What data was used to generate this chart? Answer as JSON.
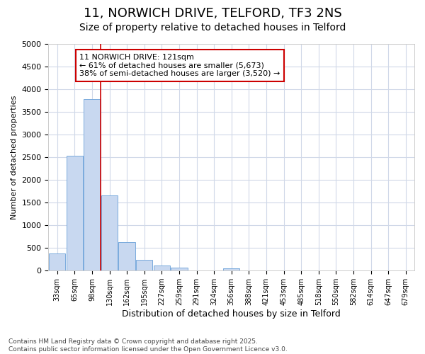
{
  "title": "11, NORWICH DRIVE, TELFORD, TF3 2NS",
  "subtitle": "Size of property relative to detached houses in Telford",
  "xlabel": "Distribution of detached houses by size in Telford",
  "ylabel": "Number of detached properties",
  "categories": [
    "33sqm",
    "65sqm",
    "98sqm",
    "130sqm",
    "162sqm",
    "195sqm",
    "227sqm",
    "259sqm",
    "291sqm",
    "324sqm",
    "356sqm",
    "388sqm",
    "421sqm",
    "453sqm",
    "485sqm",
    "518sqm",
    "550sqm",
    "582sqm",
    "614sqm",
    "647sqm",
    "679sqm"
  ],
  "values": [
    375,
    2530,
    3780,
    1650,
    625,
    230,
    110,
    65,
    0,
    0,
    50,
    0,
    0,
    0,
    0,
    0,
    0,
    0,
    0,
    0,
    0
  ],
  "bar_color": "#c8d8f0",
  "bar_edge_color": "#7aaadd",
  "vline_color": "#cc0000",
  "annotation_text": "11 NORWICH DRIVE: 121sqm\n← 61% of detached houses are smaller (5,673)\n38% of semi-detached houses are larger (3,520) →",
  "annotation_box_facecolor": "#ffffff",
  "annotation_box_edgecolor": "#cc0000",
  "ylim_max": 5000,
  "yticks": [
    0,
    500,
    1000,
    1500,
    2000,
    2500,
    3000,
    3500,
    4000,
    4500,
    5000
  ],
  "bg_color": "#ffffff",
  "grid_color": "#d0d8e8",
  "footer": "Contains HM Land Registry data © Crown copyright and database right 2025.\nContains public sector information licensed under the Open Government Licence v3.0.",
  "title_fontsize": 13,
  "subtitle_fontsize": 10,
  "vline_xindex": 2.5
}
